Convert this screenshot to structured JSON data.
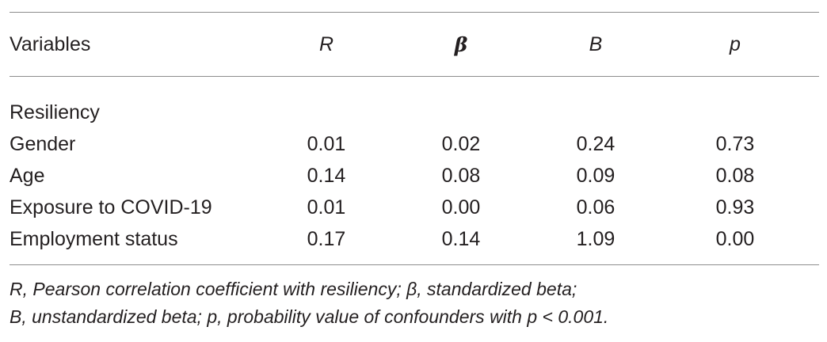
{
  "table": {
    "headers": {
      "variables": "Variables",
      "r": "R",
      "beta": "β",
      "b": "B",
      "p": "p"
    },
    "section_label": "Resiliency",
    "rows": [
      {
        "label": "Gender",
        "r": "0.01",
        "beta": "0.02",
        "b": "0.24",
        "p": "0.73"
      },
      {
        "label": "Age",
        "r": "0.14",
        "beta": "0.08",
        "b": "0.09",
        "p": "0.08"
      },
      {
        "label": "Exposure to COVID-19",
        "r": "0.01",
        "beta": "0.00",
        "b": "0.06",
        "p": "0.93"
      },
      {
        "label": "Employment status",
        "r": "0.17",
        "beta": "0.14",
        "b": "1.09",
        "p": "0.00"
      }
    ]
  },
  "footnote": {
    "line1": "R, Pearson correlation coefficient with resiliency; β, standardized beta;",
    "line2": "B, unstandardized beta; p, probability value of confounders with p < 0.001."
  }
}
